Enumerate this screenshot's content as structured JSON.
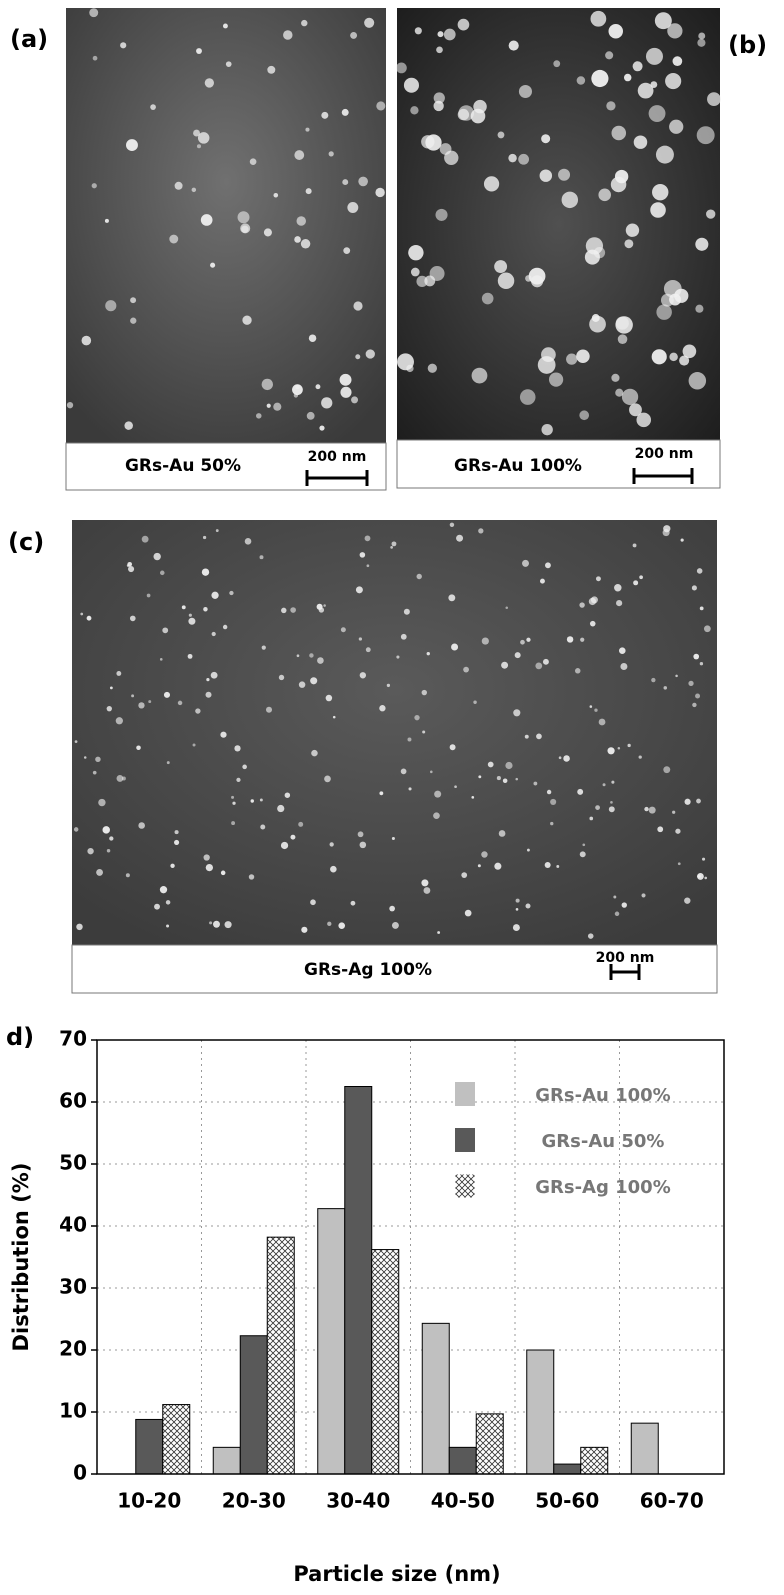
{
  "panels": [
    {
      "label": "(a)",
      "caption": "GRs-Au 50%",
      "scale_bar": "200 nm"
    },
    {
      "label": "(b)",
      "caption": "GRs-Au 100%",
      "scale_bar": "200 nm"
    },
    {
      "label": "(c)",
      "caption": "GRs-Ag 100%",
      "scale_bar": "200 nm"
    }
  ],
  "chart_data": {
    "type": "bar",
    "panel_label": "d)",
    "xlabel": "Particle size (nm)",
    "ylabel": "Distribution (%)",
    "categories": [
      "10-20",
      "20-30",
      "30-40",
      "40-50",
      "50-60",
      "60-70"
    ],
    "series": [
      {
        "name": "GRs-Au 100%",
        "color": "#c0c0c0",
        "values": [
          0,
          4.3,
          42.8,
          24.3,
          20,
          8.2
        ]
      },
      {
        "name": "GRs-Au 50%",
        "color": "#595959",
        "values": [
          8.8,
          22.3,
          62.5,
          4.3,
          1.6,
          0
        ]
      },
      {
        "name": "GRs-Ag 100%",
        "color": "#ffffff",
        "pattern": "crosshatch",
        "values": [
          11.2,
          38.2,
          36.2,
          9.7,
          4.3,
          0
        ]
      }
    ],
    "ylim": [
      0,
      70
    ],
    "yticks": [
      0,
      10,
      20,
      30,
      40,
      50,
      60,
      70
    ],
    "grid": true,
    "legend": "upper right"
  }
}
